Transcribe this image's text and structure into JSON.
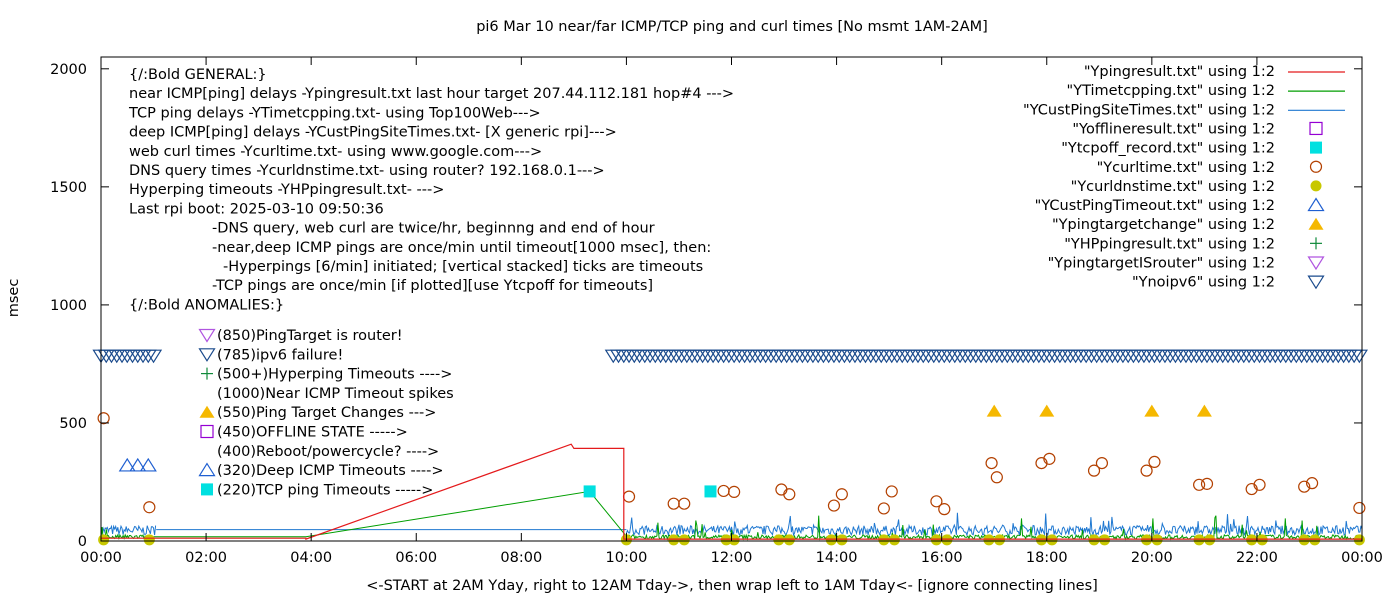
{
  "chart_data": {
    "type": "line",
    "title": "pi6 Mar 10  near/far ICMP/TCP ping and curl times [No msmt 1AM-2AM]",
    "ylabel": "msec",
    "xlabel": "<-START at 2AM Yday, right to 12AM Tday->, then wrap left to 1AM Tday<- [ignore connecting lines]",
    "xlim_hours": [
      0,
      24
    ],
    "ylim": [
      0,
      2050
    ],
    "x_ticks": [
      "00:00",
      "02:00",
      "04:00",
      "06:00",
      "08:00",
      "10:00",
      "12:00",
      "14:00",
      "16:00",
      "18:00",
      "20:00",
      "22:00",
      "00:00"
    ],
    "y_ticks": [
      {
        "value": 0,
        "label": "0"
      },
      {
        "value": 500,
        "label": "500"
      },
      {
        "value": 1000,
        "label": "1000"
      },
      {
        "value": 1500,
        "label": "1500"
      },
      {
        "value": 2000,
        "label": "2000"
      }
    ],
    "grid": false,
    "legend_position": "top-right",
    "legend": [
      {
        "label": "\"Ypingresult.txt\" using 1:2",
        "kind": "line",
        "color": "#e41a1c"
      },
      {
        "label": "\"YTimetcpping.txt\" using 1:2",
        "kind": "line",
        "color": "#009e00"
      },
      {
        "label": "\"YCustPingSiteTimes.txt\" using 1:2",
        "kind": "line",
        "color": "#1f78d1"
      },
      {
        "label": "\"Yofflineresult.txt\" using 1:2",
        "kind": "open-square",
        "color": "#9400d3"
      },
      {
        "label": "\"Ytcpoff_record.txt\" using 1:2",
        "kind": "filled-square",
        "color": "#00e0e0"
      },
      {
        "label": "\"Ycurltime.txt\" using 1:2",
        "kind": "open-circle",
        "color": "#b34000"
      },
      {
        "label": "\"Ycurldnstime.txt\" using 1:2",
        "kind": "filled-circle",
        "color": "#c8c800"
      },
      {
        "label": "\"YCustPingTimeout.txt\" using 1:2",
        "kind": "open-triangle",
        "color": "#1f5fd1"
      },
      {
        "label": "\"Ypingtargetchange\" using 1:2",
        "kind": "filled-triangle",
        "color": "#f5b800"
      },
      {
        "label": "\"YHPpingresult.txt\" using 1:2",
        "kind": "plus",
        "color": "#0f8a3a"
      },
      {
        "label": "\"YpingtargetISrouter\" using 1:2",
        "kind": "open-down-triangle",
        "color": "#b055e0"
      },
      {
        "label": "\"Ynoipv6\" using 1:2",
        "kind": "open-down-triangle",
        "color": "#1a4a8c"
      }
    ],
    "annotations": [
      {
        "text": "{/:Bold GENERAL:}",
        "indent": 0
      },
      {
        "text": "near ICMP[ping] delays -Ypingresult.txt last hour target 207.44.112.181 hop#4 --->",
        "indent": 0
      },
      {
        "text": "TCP ping delays -YTimetcpping.txt- using Top100Web--->",
        "indent": 0
      },
      {
        "text": "deep ICMP[ping] delays -YCustPingSiteTimes.txt- [X generic rpi]--->",
        "indent": 0
      },
      {
        "text": "web curl times -Ycurltime.txt- using www.google.com--->",
        "indent": 0
      },
      {
        "text": "DNS query times -Ycurldnstime.txt- using router? 192.168.0.1--->",
        "indent": 0
      },
      {
        "text": "Hyperping timeouts -YHPpingresult.txt- --->",
        "indent": 0
      },
      {
        "text": "Last rpi boot: 2025-03-10 09:50:36",
        "indent": 0
      },
      {
        "text": "-DNS query, web curl are twice/hr, beginnng and end of hour",
        "indent": 1
      },
      {
        "text": "-near,deep ICMP pings are once/min until timeout[1000 msec], then:",
        "indent": 1
      },
      {
        "text": "-Hyperpings [6/min] initiated; [vertical stacked] ticks are timeouts",
        "indent": 2
      },
      {
        "text": "-TCP pings are once/min [if plotted][use Ytcpoff for timeouts]",
        "indent": 1
      },
      {
        "text": "{/:Bold ANOMALIES:}",
        "indent": 0
      }
    ],
    "anomaly_keys": [
      {
        "text": "(850)PingTarget is router!",
        "marker": "open-down-triangle",
        "color": "#b055e0"
      },
      {
        "text": "(785)ipv6 failure!",
        "marker": "open-down-triangle",
        "color": "#1a4a8c"
      },
      {
        "text": "(500+)Hyperping Timeouts ---->",
        "marker": "plus",
        "color": "#0f8a3a"
      },
      {
        "text": "(1000)Near ICMP Timeout spikes",
        "marker": "none",
        "color": ""
      },
      {
        "text": "(550)Ping Target Changes --->",
        "marker": "filled-triangle",
        "color": "#f5b800"
      },
      {
        "text": "(450)OFFLINE STATE ----->",
        "marker": "open-square",
        "color": "#9400d3"
      },
      {
        "text": "(400)Reboot/powercycle? ---->",
        "marker": "none",
        "color": ""
      },
      {
        "text": "(320)Deep ICMP Timeouts ---->",
        "marker": "open-triangle",
        "color": "#1f5fd1"
      },
      {
        "text": "(220)TCP ping Timeouts ----->",
        "marker": "filled-square",
        "color": "#00e0e0"
      }
    ],
    "series": [
      {
        "name": "\"Ycurltime.txt\" using 1:2",
        "marker": "open-circle",
        "color": "#b34000",
        "points": [
          [
            0.05,
            520
          ],
          [
            0.92,
            143
          ],
          [
            10.05,
            188
          ],
          [
            10.9,
            158
          ],
          [
            11.1,
            158
          ],
          [
            11.85,
            212
          ],
          [
            12.05,
            208
          ],
          [
            12.95,
            218
          ],
          [
            13.1,
            198
          ],
          [
            13.95,
            150
          ],
          [
            14.1,
            198
          ],
          [
            14.9,
            138
          ],
          [
            15.05,
            210
          ],
          [
            15.9,
            168
          ],
          [
            16.05,
            135
          ],
          [
            16.95,
            330
          ],
          [
            17.05,
            270
          ],
          [
            17.9,
            330
          ],
          [
            18.05,
            348
          ],
          [
            18.9,
            298
          ],
          [
            19.05,
            330
          ],
          [
            19.9,
            298
          ],
          [
            20.05,
            335
          ],
          [
            20.9,
            238
          ],
          [
            21.05,
            242
          ],
          [
            21.9,
            220
          ],
          [
            22.05,
            238
          ],
          [
            22.9,
            230
          ],
          [
            23.05,
            245
          ],
          [
            23.95,
            140
          ]
        ]
      },
      {
        "name": "\"Ycurldnstime.txt\" using 1:2",
        "marker": "filled-circle",
        "color": "#c8c800",
        "points": [
          [
            0.05,
            5
          ],
          [
            0.92,
            5
          ],
          [
            10.0,
            5
          ],
          [
            10.9,
            5
          ],
          [
            11.1,
            5
          ],
          [
            11.9,
            5
          ],
          [
            12.05,
            5
          ],
          [
            12.9,
            5
          ],
          [
            13.1,
            5
          ],
          [
            13.9,
            5
          ],
          [
            14.1,
            5
          ],
          [
            14.9,
            5
          ],
          [
            15.1,
            5
          ],
          [
            15.9,
            5
          ],
          [
            16.1,
            5
          ],
          [
            16.9,
            5
          ],
          [
            17.1,
            5
          ],
          [
            17.9,
            5
          ],
          [
            18.1,
            5
          ],
          [
            18.9,
            5
          ],
          [
            19.1,
            5
          ],
          [
            19.9,
            5
          ],
          [
            20.1,
            5
          ],
          [
            20.9,
            5
          ],
          [
            21.1,
            5
          ],
          [
            21.9,
            5
          ],
          [
            22.1,
            5
          ],
          [
            22.9,
            5
          ],
          [
            23.1,
            5
          ],
          [
            23.95,
            5
          ]
        ]
      },
      {
        "name": "\"YCustPingTimeout.txt\" using 1:2",
        "marker": "open-triangle",
        "color": "#1f5fd1",
        "points": [
          [
            0.5,
            320
          ],
          [
            0.7,
            320
          ],
          [
            0.9,
            320
          ]
        ]
      },
      {
        "name": "\"Ypingtargetchange\" using 1:2",
        "marker": "filled-triangle",
        "color": "#f5b800",
        "points": [
          [
            17.0,
            550
          ],
          [
            18.0,
            550
          ],
          [
            20.0,
            550
          ],
          [
            21.0,
            550
          ]
        ]
      },
      {
        "name": "\"Ytcpoff_record.txt\" using 1:2",
        "marker": "filled-square",
        "color": "#00e0e0",
        "points": [
          [
            9.3,
            210
          ],
          [
            11.6,
            210
          ]
        ]
      },
      {
        "name": "\"Ynoipv6\" using 1:2",
        "marker": "open-down-triangle",
        "color": "#1a4a8c",
        "runs": [
          [
            0.0,
            1.0
          ],
          [
            9.75,
            24.0
          ]
        ],
        "y": 785
      },
      {
        "name": "\"Ypingresult.txt\" using 1:2",
        "line": true,
        "color": "#e41a1c",
        "points": [
          [
            0.0,
            12
          ],
          [
            3.9,
            12
          ],
          [
            3.9,
            8
          ],
          [
            8.95,
            410
          ],
          [
            9.0,
            392
          ],
          [
            9.95,
            392
          ],
          [
            9.95,
            8
          ],
          [
            24.0,
            8
          ]
        ]
      }
    ]
  }
}
